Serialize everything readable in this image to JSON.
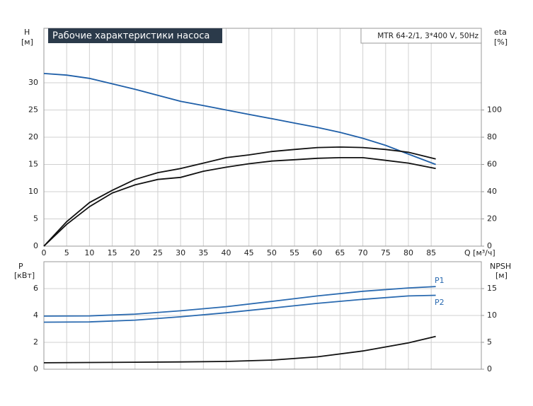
{
  "chart_data": [
    {
      "type": "line",
      "title": "Рабочие характеристики насоса",
      "annotation": "MTR 64-2/1, 3*400 V, 50Hz",
      "y_label": "H",
      "y_unit": "[м]",
      "y2_label": "eta",
      "y2_unit": "[%]",
      "x_label": "Q [м³/ч]",
      "x": [
        0,
        5,
        10,
        15,
        20,
        25,
        30,
        35,
        40,
        45,
        50,
        55,
        60,
        65,
        70,
        75,
        80,
        86
      ],
      "xlim": [
        0,
        96
      ],
      "xticks": [
        0,
        5,
        10,
        15,
        20,
        25,
        30,
        35,
        40,
        45,
        50,
        55,
        60,
        65,
        70,
        75,
        80,
        85
      ],
      "ylim": [
        0,
        40
      ],
      "yticks": [
        0,
        5,
        10,
        15,
        20,
        25,
        30
      ],
      "y2lim": [
        0,
        160
      ],
      "y2ticks": [
        0,
        20,
        40,
        60,
        80,
        100
      ],
      "grid": true,
      "series": [
        {
          "color": "#1f5fa8",
          "values": [
            31.7,
            31.4,
            30.8,
            29.8,
            28.8,
            27.7,
            26.6,
            25.8,
            25.0,
            24.2,
            23.4,
            22.6,
            21.8,
            20.9,
            19.8,
            18.5,
            16.9,
            15.0
          ]
        },
        {
          "color": "#111111",
          "axis": "y2",
          "values": [
            0,
            18,
            32,
            41,
            49,
            54,
            57,
            61,
            65,
            67,
            69.5,
            71,
            72.4,
            72.8,
            72.4,
            71,
            69,
            64
          ]
        },
        {
          "color": "#111111",
          "axis": "y2",
          "values": [
            0,
            16,
            29,
            39,
            45,
            49,
            50.5,
            55,
            58,
            60.5,
            62.5,
            63.5,
            64.5,
            65,
            65,
            63,
            61,
            57
          ]
        }
      ]
    },
    {
      "type": "line",
      "y_label": "P",
      "y_unit": "[кВт]",
      "y2_label": "NPSH",
      "y2_unit": "[м]",
      "x": [
        0,
        10,
        20,
        30,
        40,
        50,
        60,
        70,
        80,
        86
      ],
      "xlim": [
        0,
        96
      ],
      "xticks": [
        0,
        5,
        10,
        15,
        20,
        25,
        30,
        35,
        40,
        45,
        50,
        55,
        60,
        65,
        70,
        75,
        80,
        85
      ],
      "ylim": [
        0,
        8
      ],
      "yticks": [
        0,
        2,
        4,
        6
      ],
      "y2lim": [
        0,
        20
      ],
      "y2ticks": [
        0,
        5,
        10,
        15
      ],
      "grid": true,
      "series": [
        {
          "name": "P1",
          "color": "#2a6ab0",
          "values": [
            3.95,
            3.97,
            4.1,
            4.35,
            4.65,
            5.05,
            5.45,
            5.8,
            6.05,
            6.15
          ]
        },
        {
          "name": "P2",
          "color": "#2a6ab0",
          "values": [
            3.5,
            3.52,
            3.65,
            3.9,
            4.2,
            4.55,
            4.9,
            5.2,
            5.45,
            5.5
          ]
        },
        {
          "color": "#111111",
          "axis": "y2",
          "values": [
            1.2,
            1.25,
            1.3,
            1.35,
            1.45,
            1.7,
            2.3,
            3.4,
            4.9,
            6.1
          ]
        }
      ]
    }
  ]
}
